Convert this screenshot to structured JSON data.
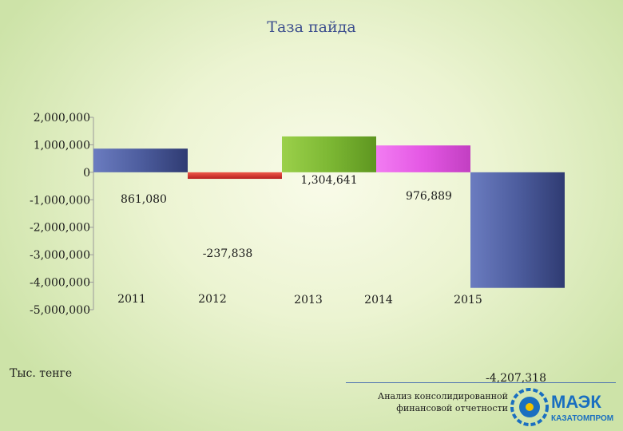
{
  "chart_data": {
    "type": "bar",
    "title": "Таза пайда",
    "categories": [
      "2011",
      "2012",
      "2013",
      "2014",
      "2015"
    ],
    "values": [
      861080,
      -237838,
      1304641,
      976889,
      -4207318
    ],
    "value_labels": [
      "861,080",
      "-237,838",
      "1,304,641",
      "976,889",
      "-4,207,318"
    ],
    "ylim": [
      -5000000,
      2000000
    ],
    "yticks": [
      2000000,
      1000000,
      0,
      -1000000,
      -2000000,
      -3000000,
      -4000000,
      -5000000
    ],
    "ytick_labels": [
      "2,000,000",
      "1,000,000",
      "0",
      "-1,000,000",
      "-2,000,000",
      "-3,000,000",
      "-4,000,000",
      "-5,000,000"
    ],
    "bar_colors": [
      "#4f5f9f",
      "#d8322c",
      "#7cb532",
      "#e85ce8",
      "#4f5f9f"
    ],
    "grid": false,
    "unit_label": "Тыс. тенге"
  },
  "footer": {
    "line1": "Анализ консолидированной",
    "line2": "финансовой отчетности"
  },
  "logo": {
    "name": "МАЭК",
    "subtitle": "КАЗАТОМПРОМ",
    "color": "#1a6fc0"
  }
}
